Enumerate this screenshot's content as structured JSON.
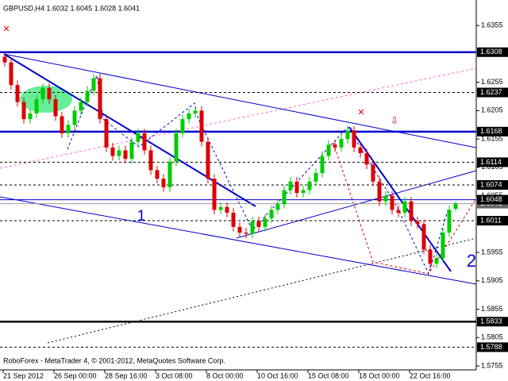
{
  "chart_data": {
    "type": "candlestick",
    "title": "GBPUSD,H4  1.6032 1.6045 1.6028 1.6041",
    "footer": "RoboForex - MetaTrader 4, © 2001-2012, MetaQuotes Software Corp.",
    "annotations": [
      "1",
      "2"
    ],
    "up_color": "#00cc00",
    "down_color": "#dd0000",
    "categories": [
      "21 Sep 2012",
      null,
      null,
      null,
      null,
      null,
      null,
      null,
      "26 Sep 00:00",
      null,
      null,
      null,
      null,
      null,
      null,
      null,
      "28 Sep 16:00",
      null,
      null,
      null,
      null,
      null,
      null,
      null,
      "3 Oct 08:00",
      null,
      null,
      null,
      null,
      null,
      null,
      null,
      "8 Oct 00:00",
      null,
      null,
      null,
      null,
      null,
      null,
      null,
      "10 Oct 16:00",
      null,
      null,
      null,
      null,
      null,
      null,
      null,
      "15 Oct 08:00",
      null,
      null,
      null,
      null,
      null,
      null,
      null,
      "18 Oct 00:00",
      null,
      null,
      null,
      null,
      null,
      null,
      null,
      "22 Oct 16:00",
      null,
      null,
      null,
      null,
      null,
      null,
      null
    ],
    "open": [
      1.63,
      1.629,
      1.625,
      1.622,
      1.619,
      1.62,
      1.6225,
      1.6245,
      1.6225,
      1.6195,
      1.6165,
      1.618,
      1.6205,
      1.622,
      1.624,
      1.6262,
      1.619,
      1.614,
      1.6125,
      1.6135,
      1.612,
      1.615,
      1.6165,
      1.6135,
      1.61,
      1.6085,
      1.607,
      1.6115,
      1.6165,
      1.619,
      1.62,
      1.6205,
      1.615,
      1.6085,
      1.603,
      1.6035,
      1.6025,
      1.6,
      1.599,
      1.5988,
      1.601,
      1.6,
      1.6015,
      1.603,
      1.604,
      1.6065,
      1.608,
      1.606,
      1.6065,
      1.608,
      1.6095,
      1.6125,
      1.6145,
      1.614,
      1.6155,
      1.617,
      1.614,
      1.613,
      1.611,
      1.608,
      1.6045,
      1.6055,
      1.603,
      1.6025,
      1.6045,
      1.601,
      1.6005,
      1.596,
      1.5935,
      1.5945,
      1.599,
      1.6032
    ],
    "high": [
      1.6308,
      1.6298,
      1.6258,
      1.6228,
      1.6208,
      1.6233,
      1.6253,
      1.6253,
      1.6233,
      1.6203,
      1.6188,
      1.6213,
      1.6228,
      1.6248,
      1.627,
      1.627,
      1.6198,
      1.6148,
      1.6143,
      1.6143,
      1.6158,
      1.6173,
      1.6173,
      1.6143,
      1.6108,
      1.6093,
      1.6123,
      1.6173,
      1.6198,
      1.6208,
      1.6213,
      1.6213,
      1.6158,
      1.6093,
      1.6043,
      1.6043,
      1.6033,
      1.6008,
      1.5998,
      1.6018,
      1.6018,
      1.6023,
      1.6038,
      1.6048,
      1.6073,
      1.6088,
      1.6088,
      1.6073,
      1.6088,
      1.6103,
      1.6133,
      1.6153,
      1.6153,
      1.6163,
      1.6178,
      1.6178,
      1.6148,
      1.6138,
      1.6118,
      1.6088,
      1.6063,
      1.6063,
      1.6038,
      1.6053,
      1.6053,
      1.6018,
      1.6013,
      1.5968,
      1.5953,
      1.5998,
      1.6038,
      1.6045
    ],
    "low": [
      1.6282,
      1.6242,
      1.6212,
      1.6182,
      1.6182,
      1.6192,
      1.6217,
      1.6217,
      1.6187,
      1.6157,
      1.6157,
      1.6172,
      1.6197,
      1.6212,
      1.6232,
      1.6182,
      1.6132,
      1.6117,
      1.6117,
      1.6112,
      1.6112,
      1.6142,
      1.6127,
      1.6092,
      1.6077,
      1.6062,
      1.6062,
      1.6107,
      1.6157,
      1.6182,
      1.6192,
      1.6142,
      1.6077,
      1.6022,
      1.6022,
      1.6017,
      1.5992,
      1.5982,
      1.598,
      1.598,
      1.5992,
      1.5992,
      1.6007,
      1.6022,
      1.6032,
      1.6057,
      1.6052,
      1.6052,
      1.6057,
      1.6072,
      1.6087,
      1.6117,
      1.6132,
      1.6132,
      1.6147,
      1.6132,
      1.6122,
      1.6102,
      1.6072,
      1.6037,
      1.6037,
      1.6022,
      1.6017,
      1.6017,
      1.6002,
      1.5997,
      1.5952,
      1.5927,
      1.5927,
      1.5937,
      1.5982,
      1.6028
    ],
    "close": [
      1.629,
      1.625,
      1.622,
      1.619,
      1.62,
      1.6225,
      1.6245,
      1.6225,
      1.6195,
      1.6165,
      1.618,
      1.6205,
      1.622,
      1.624,
      1.6262,
      1.619,
      1.614,
      1.6125,
      1.6135,
      1.612,
      1.615,
      1.6165,
      1.6135,
      1.61,
      1.6085,
      1.607,
      1.6115,
      1.6165,
      1.619,
      1.62,
      1.6205,
      1.615,
      1.6085,
      1.603,
      1.6035,
      1.6025,
      1.6,
      1.599,
      1.5988,
      1.601,
      1.6,
      1.6015,
      1.603,
      1.604,
      1.6065,
      1.608,
      1.606,
      1.6065,
      1.608,
      1.6095,
      1.6125,
      1.6145,
      1.614,
      1.6155,
      1.617,
      1.614,
      1.613,
      1.611,
      1.608,
      1.6045,
      1.6055,
      1.603,
      1.6025,
      1.6045,
      1.601,
      1.6005,
      1.596,
      1.5935,
      1.5945,
      1.599,
      1.603,
      1.6041
    ],
    "ylim": [
      1.5748,
      1.64
    ],
    "yticks": [
      1.6355,
      1.6255,
      1.6205,
      1.6155,
      1.6105,
      1.6055,
      1.5955,
      1.5905,
      1.5855,
      1.5805,
      1.5755
    ],
    "levels": [
      {
        "value": 1.6041,
        "style": "thin",
        "color": "#999999"
      },
      {
        "value": 1.6308,
        "style": "thick",
        "color": "#0000cc"
      },
      {
        "value": 1.6237,
        "style": "dash",
        "color": "#000000"
      },
      {
        "value": 1.6168,
        "style": "thick",
        "color": "#0000cc"
      },
      {
        "value": 1.6114,
        "style": "dash",
        "color": "#000000"
      },
      {
        "value": 1.6074,
        "style": "dash",
        "color": "#000000"
      },
      {
        "value": 1.6048,
        "style": "thin",
        "color": "#0000cc"
      },
      {
        "value": 1.6011,
        "style": "dash",
        "color": "#000000"
      },
      {
        "value": 1.5833,
        "style": "thick",
        "color": "#000000"
      },
      {
        "value": 1.5788,
        "style": "dash",
        "color": "#000000"
      }
    ]
  }
}
